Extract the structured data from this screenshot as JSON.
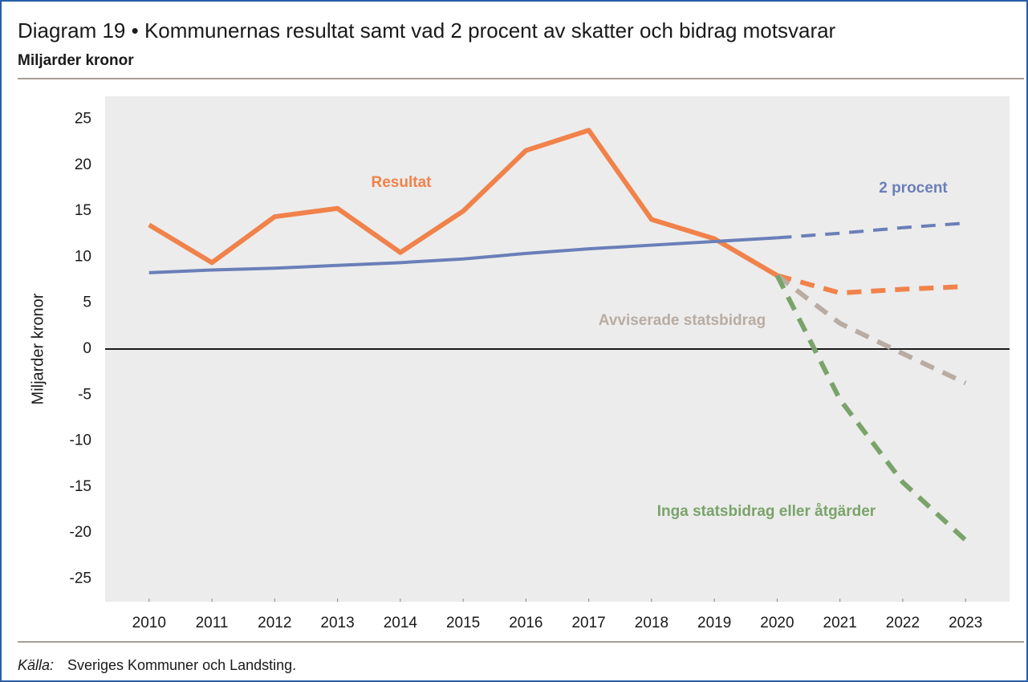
{
  "chart_data": {
    "type": "line",
    "title": "Diagram 19 • Kommunernas resultat samt vad 2 procent av skatter och bidrag motsvarar",
    "subtitle": "Miljarder kronor",
    "y_label": "Miljarder kronor",
    "source_label": "Källa:",
    "source": "Sveriges Kommuner och Landsting.",
    "x": [
      2010,
      2011,
      2012,
      2013,
      2014,
      2015,
      2016,
      2017,
      2018,
      2019,
      2020,
      2021,
      2022,
      2023
    ],
    "xlim": [
      2009.3,
      2023.7
    ],
    "xticks": [
      2010,
      2011,
      2012,
      2013,
      2014,
      2015,
      2016,
      2017,
      2018,
      2019,
      2020,
      2021,
      2022,
      2023
    ],
    "ylim": [
      -27.5,
      27.5
    ],
    "yticks": [
      25,
      20,
      15,
      10,
      5,
      0,
      -5,
      -10,
      -15,
      -20,
      -25
    ],
    "forecast_from": 2020,
    "grid": false,
    "series": [
      {
        "name": "Resultat",
        "color": "#f0824a",
        "values": [
          13.5,
          9.4,
          14.4,
          15.3,
          10.5,
          15.0,
          21.6,
          23.8,
          14.1,
          12.0,
          8.0,
          6.1,
          6.5,
          6.8
        ]
      },
      {
        "name": "2 procent",
        "color": "#6a7fb8",
        "values": [
          8.3,
          8.6,
          8.8,
          9.1,
          9.4,
          9.8,
          10.4,
          10.9,
          11.3,
          11.7,
          12.1,
          12.6,
          13.2,
          13.7
        ]
      },
      {
        "name": "Avviserade statsbidrag",
        "color": "#b8aca3",
        "values": [
          null,
          null,
          null,
          null,
          null,
          null,
          null,
          null,
          null,
          null,
          8.0,
          2.8,
          -0.5,
          -3.7
        ]
      },
      {
        "name": "Inga statsbidrag eller åtgärder",
        "color": "#7aa36a",
        "values": [
          null,
          null,
          null,
          null,
          null,
          null,
          null,
          null,
          null,
          null,
          8.0,
          -5.5,
          -14.5,
          -20.8
        ]
      }
    ]
  }
}
